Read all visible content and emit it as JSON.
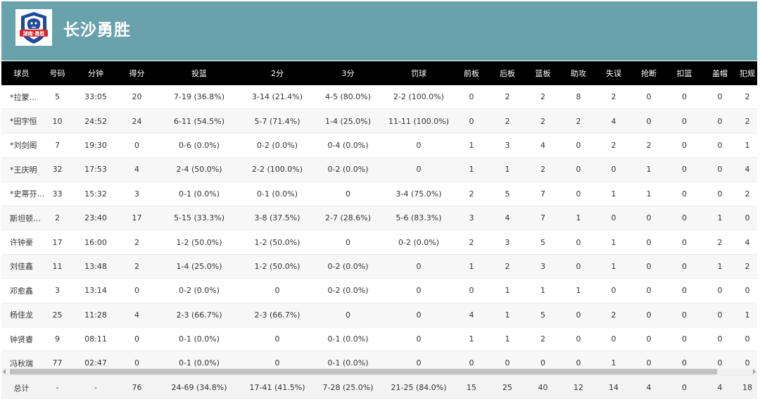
{
  "team": {
    "name": "长沙勇胜",
    "logo_text": "湖南·勇胜"
  },
  "columns": [
    "球员",
    "号码",
    "分钟",
    "得分",
    "投篮",
    "2分",
    "3分",
    "罚球",
    "前板",
    "后板",
    "篮板",
    "助攻",
    "失误",
    "抢断",
    "扣篮",
    "盖帽",
    "犯规"
  ],
  "rows": [
    [
      "*拉蒙…",
      "5",
      "33:05",
      "20",
      "7-19 (36.8%)",
      "3-14 (21.4%)",
      "4-5 (80.0%)",
      "2-2 (100.0%)",
      "0",
      "2",
      "2",
      "8",
      "2",
      "0",
      "0",
      "0",
      "2"
    ],
    [
      "*田宇恒",
      "10",
      "24:52",
      "24",
      "6-11 (54.5%)",
      "5-7 (71.4%)",
      "1-4 (25.0%)",
      "11-11 (100.0%)",
      "0",
      "2",
      "2",
      "2",
      "4",
      "0",
      "0",
      "0",
      "2"
    ],
    [
      "*刘剑阁",
      "7",
      "19:30",
      "0",
      "0-6 (0.0%)",
      "0-2 (0.0%)",
      "0-4 (0.0%)",
      "0",
      "1",
      "3",
      "4",
      "0",
      "2",
      "2",
      "0",
      "0",
      "1"
    ],
    [
      "*王庆明",
      "32",
      "17:53",
      "4",
      "2-4 (50.0%)",
      "2-2 (100.0%)",
      "0-2 (0.0%)",
      "0",
      "1",
      "1",
      "2",
      "0",
      "0",
      "1",
      "0",
      "0",
      "4"
    ],
    [
      "*史蒂芬…",
      "33",
      "15:32",
      "3",
      "0-1 (0.0%)",
      "0-1 (0.0%)",
      "0",
      "3-4 (75.0%)",
      "2",
      "5",
      "7",
      "0",
      "1",
      "1",
      "0",
      "0",
      "2"
    ],
    [
      "斯坦顿…",
      "2",
      "23:40",
      "17",
      "5-15 (33.3%)",
      "3-8 (37.5%)",
      "2-7 (28.6%)",
      "5-6 (83.3%)",
      "3",
      "4",
      "7",
      "1",
      "0",
      "0",
      "0",
      "1",
      "0"
    ],
    [
      "许钟豪",
      "17",
      "16:00",
      "2",
      "1-2 (50.0%)",
      "1-2 (50.0%)",
      "0",
      "0-2 (0.0%)",
      "2",
      "3",
      "5",
      "0",
      "1",
      "0",
      "0",
      "2",
      "4"
    ],
    [
      "刘佳鑫",
      "11",
      "13:48",
      "2",
      "1-4 (25.0%)",
      "1-2 (50.0%)",
      "0-2 (0.0%)",
      "0",
      "1",
      "2",
      "3",
      "0",
      "1",
      "0",
      "0",
      "1",
      "2"
    ],
    [
      "邓愈鑫",
      "3",
      "13:14",
      "0",
      "0-2 (0.0%)",
      "0",
      "0-2 (0.0%)",
      "0",
      "0",
      "1",
      "1",
      "1",
      "0",
      "0",
      "0",
      "0",
      "0"
    ],
    [
      "杨佳龙",
      "25",
      "11:28",
      "4",
      "2-3 (66.7%)",
      "2-3 (66.7%)",
      "0",
      "0",
      "4",
      "1",
      "5",
      "0",
      "2",
      "0",
      "0",
      "0",
      "1"
    ],
    [
      "钟贤睿",
      "9",
      "08:11",
      "0",
      "0-1 (0.0%)",
      "0",
      "0-1 (0.0%)",
      "0",
      "1",
      "1",
      "2",
      "0",
      "0",
      "0",
      "0",
      "0",
      "0"
    ],
    [
      "冯秋瑞",
      "77",
      "02:47",
      "0",
      "0-1 (0.0%)",
      "0",
      "0-1 (0.0%)",
      "0",
      "0",
      "0",
      "0",
      "0",
      "1",
      "0",
      "0",
      "0",
      "0"
    ]
  ],
  "totals": [
    "总计",
    "-",
    "-",
    "76",
    "24-69 (34.8%)",
    "17-41 (41.5%)",
    "7-28 (25.0%)",
    "21-25 (84.0%)",
    "15",
    "25",
    "40",
    "12",
    "14",
    "4",
    "0",
    "4",
    "18"
  ],
  "colors": {
    "header_bg": "#6aa2ac",
    "table_header_bg": "#000000",
    "logo_red": "#d8262e",
    "logo_blue": "#1f4a9c"
  }
}
